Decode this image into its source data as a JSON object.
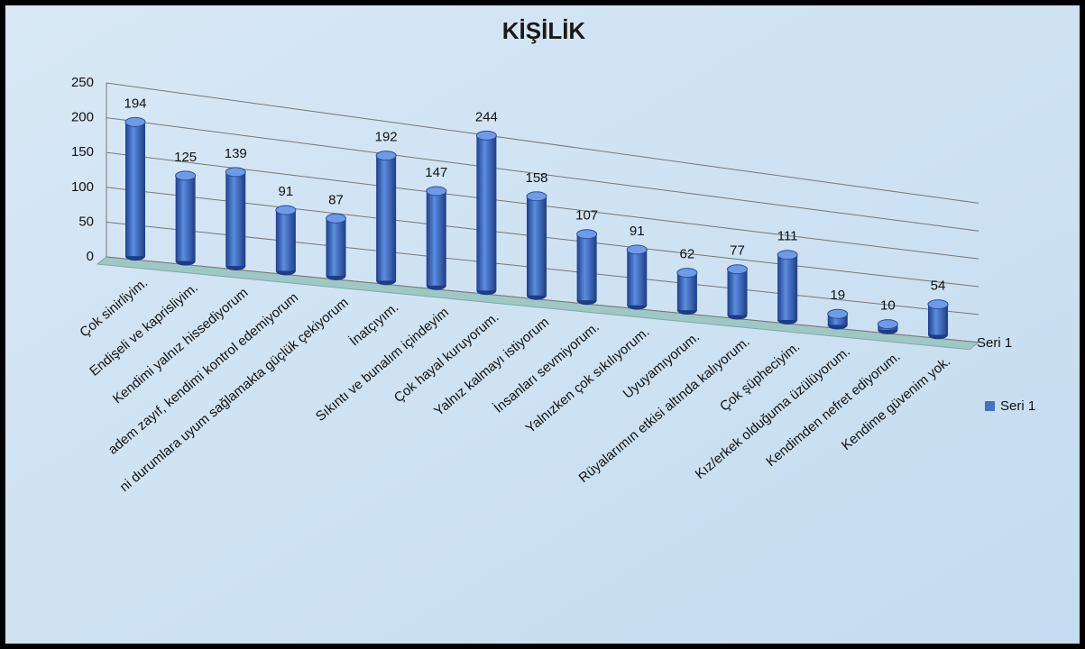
{
  "chart_data": {
    "type": "bar3d",
    "title": "KİŞİLİK",
    "categories": [
      "Çok sinirliyim.",
      "Endişeli ve kaprisliyim.",
      "Kendimi yalnız hissediyorum",
      "adem zayıf, kendimi kontrol edemiyorum",
      "ni durumlara uyum sağlamakta güçlük çekiyorum",
      "İnatçıyım.",
      "Sıkıntı ve bunalım içindeyim",
      "Çok hayal kuruyorum.",
      "Yalnız kalmayı istiyorum",
      "İnsanları sevmiyorum.",
      "Yalnızken çok sıkılıyorum.",
      "Uyuyamıyorum.",
      "Rüyalarımın etkisi altında kalıyorum.",
      "Çok şüpheciyim.",
      "Kız/erkek olduğuma üzülüyorum.",
      "Kendimden nefret ediyorum.",
      "Kendime güvenim yok."
    ],
    "series": [
      {
        "name": "Seri 1",
        "color": "#4472c4",
        "values": [
          194,
          125,
          139,
          91,
          87,
          192,
          147,
          244,
          158,
          107,
          91,
          62,
          77,
          111,
          19,
          10,
          54
        ]
      }
    ],
    "depth_label": "Seri 1",
    "ylim": [
      0,
      250
    ],
    "yticks": [
      0,
      50,
      100,
      150,
      200,
      250
    ],
    "grid": true,
    "legend": "right"
  }
}
